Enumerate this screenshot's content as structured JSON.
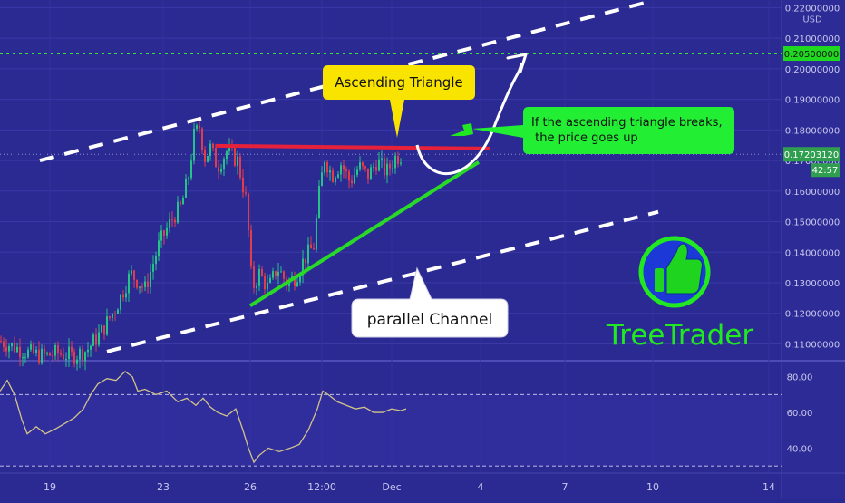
{
  "chart_data": [
    {
      "type": "candlestick",
      "currency": "USD",
      "price_axis_ticks": [
        0.22,
        0.21,
        0.2,
        0.19,
        0.18,
        0.17,
        0.16,
        0.15,
        0.14,
        0.13,
        0.12,
        0.11
      ],
      "price_axis_tick_labels": [
        "0.22000000",
        "0.21000000",
        "0.20000000",
        "0.19000000",
        "0.18000000",
        "0.17000000",
        "0.16000000",
        "0.15000000",
        "0.14000000",
        "0.13000000",
        "0.12000000",
        "0.11000000"
      ],
      "ylim": [
        0.1045,
        0.2225
      ],
      "grid": true,
      "time_axis_labels": [
        "19",
        "23",
        "26",
        "12:00",
        "Dec",
        "4",
        "7",
        "10",
        "14"
      ],
      "price_series": [
        [
          0,
          0.111
        ],
        [
          16,
          0.109
        ],
        [
          32,
          0.107
        ],
        [
          48,
          0.106
        ],
        [
          64,
          0.107
        ],
        [
          80,
          0.106
        ],
        [
          96,
          0.108
        ],
        [
          112,
          0.114
        ],
        [
          128,
          0.122
        ],
        [
          144,
          0.133
        ],
        [
          160,
          0.128
        ],
        [
          176,
          0.143
        ],
        [
          192,
          0.152
        ],
        [
          200,
          0.155
        ],
        [
          208,
          0.165
        ],
        [
          214,
          0.178
        ],
        [
          220,
          0.181
        ],
        [
          226,
          0.171
        ],
        [
          232,
          0.174
        ],
        [
          240,
          0.168
        ],
        [
          250,
          0.173
        ],
        [
          262,
          0.17
        ],
        [
          272,
          0.156
        ],
        [
          278,
          0.128
        ],
        [
          286,
          0.133
        ],
        [
          296,
          0.128
        ],
        [
          306,
          0.135
        ],
        [
          316,
          0.13
        ],
        [
          326,
          0.132
        ],
        [
          336,
          0.138
        ],
        [
          346,
          0.142
        ],
        [
          352,
          0.159
        ],
        [
          358,
          0.171
        ],
        [
          366,
          0.165
        ],
        [
          376,
          0.169
        ],
        [
          386,
          0.163
        ],
        [
          396,
          0.168
        ],
        [
          406,
          0.165
        ],
        [
          416,
          0.17
        ],
        [
          426,
          0.166
        ],
        [
          436,
          0.171
        ],
        [
          444,
          0.172
        ]
      ],
      "last_price_label": "0.17203120",
      "countdown_label": "42:57",
      "target_price_label": "0.20500000",
      "target_price": 0.205,
      "resistance": {
        "price": 0.1745,
        "color": "#e8213a"
      },
      "support_line": [
        [
          276,
          0.1225
        ],
        [
          528,
          0.1695
        ]
      ],
      "support_color": "#28d928",
      "channel": {
        "upper": [
          [
            44,
            0.17
          ],
          [
            710,
            0.2215
          ]
        ],
        "lower": [
          [
            118,
            0.1075
          ],
          [
            726,
            0.1532
          ]
        ],
        "color": "#ffffff"
      },
      "projection_arrow": "white curved arrow up toward target",
      "annotations": {
        "triangle_label": "Ascending Triangle",
        "breakout_note_line1": "If the ascending triangle breaks,",
        "breakout_note_line2": " the price goes up",
        "channel_label": "parallel Channel"
      },
      "brand": {
        "name": "TreeTrader",
        "logo": "thumbs-up-icon",
        "color": "#22e822"
      }
    },
    {
      "type": "line",
      "indicator": "oscillator",
      "y_ticks": [
        80,
        60,
        40
      ],
      "y_tick_labels": [
        "80.00",
        "60.00",
        "40.00"
      ],
      "ylim": [
        27,
        88
      ],
      "bands": [
        70,
        30
      ],
      "line_color": "#d2c48a",
      "series_points": [
        [
          0,
          72
        ],
        [
          8,
          78
        ],
        [
          16,
          70
        ],
        [
          24,
          56
        ],
        [
          30,
          48
        ],
        [
          40,
          52
        ],
        [
          50,
          48
        ],
        [
          62,
          51
        ],
        [
          72,
          54
        ],
        [
          82,
          57
        ],
        [
          92,
          62
        ],
        [
          100,
          70
        ],
        [
          108,
          76
        ],
        [
          118,
          79
        ],
        [
          128,
          78
        ],
        [
          138,
          83
        ],
        [
          146,
          80
        ],
        [
          152,
          72
        ],
        [
          160,
          73
        ],
        [
          172,
          70
        ],
        [
          184,
          72
        ],
        [
          196,
          66
        ],
        [
          206,
          68
        ],
        [
          216,
          64
        ],
        [
          224,
          68
        ],
        [
          232,
          63
        ],
        [
          240,
          60
        ],
        [
          250,
          58
        ],
        [
          260,
          62
        ],
        [
          268,
          50
        ],
        [
          274,
          40
        ],
        [
          280,
          32
        ],
        [
          286,
          36
        ],
        [
          296,
          40
        ],
        [
          308,
          38
        ],
        [
          320,
          40
        ],
        [
          330,
          42
        ],
        [
          340,
          50
        ],
        [
          350,
          62
        ],
        [
          356,
          72
        ],
        [
          362,
          70
        ],
        [
          372,
          66
        ],
        [
          382,
          64
        ],
        [
          392,
          62
        ],
        [
          402,
          63
        ],
        [
          412,
          60
        ],
        [
          422,
          60
        ],
        [
          432,
          62
        ],
        [
          442,
          61
        ],
        [
          448,
          62
        ]
      ]
    }
  ]
}
